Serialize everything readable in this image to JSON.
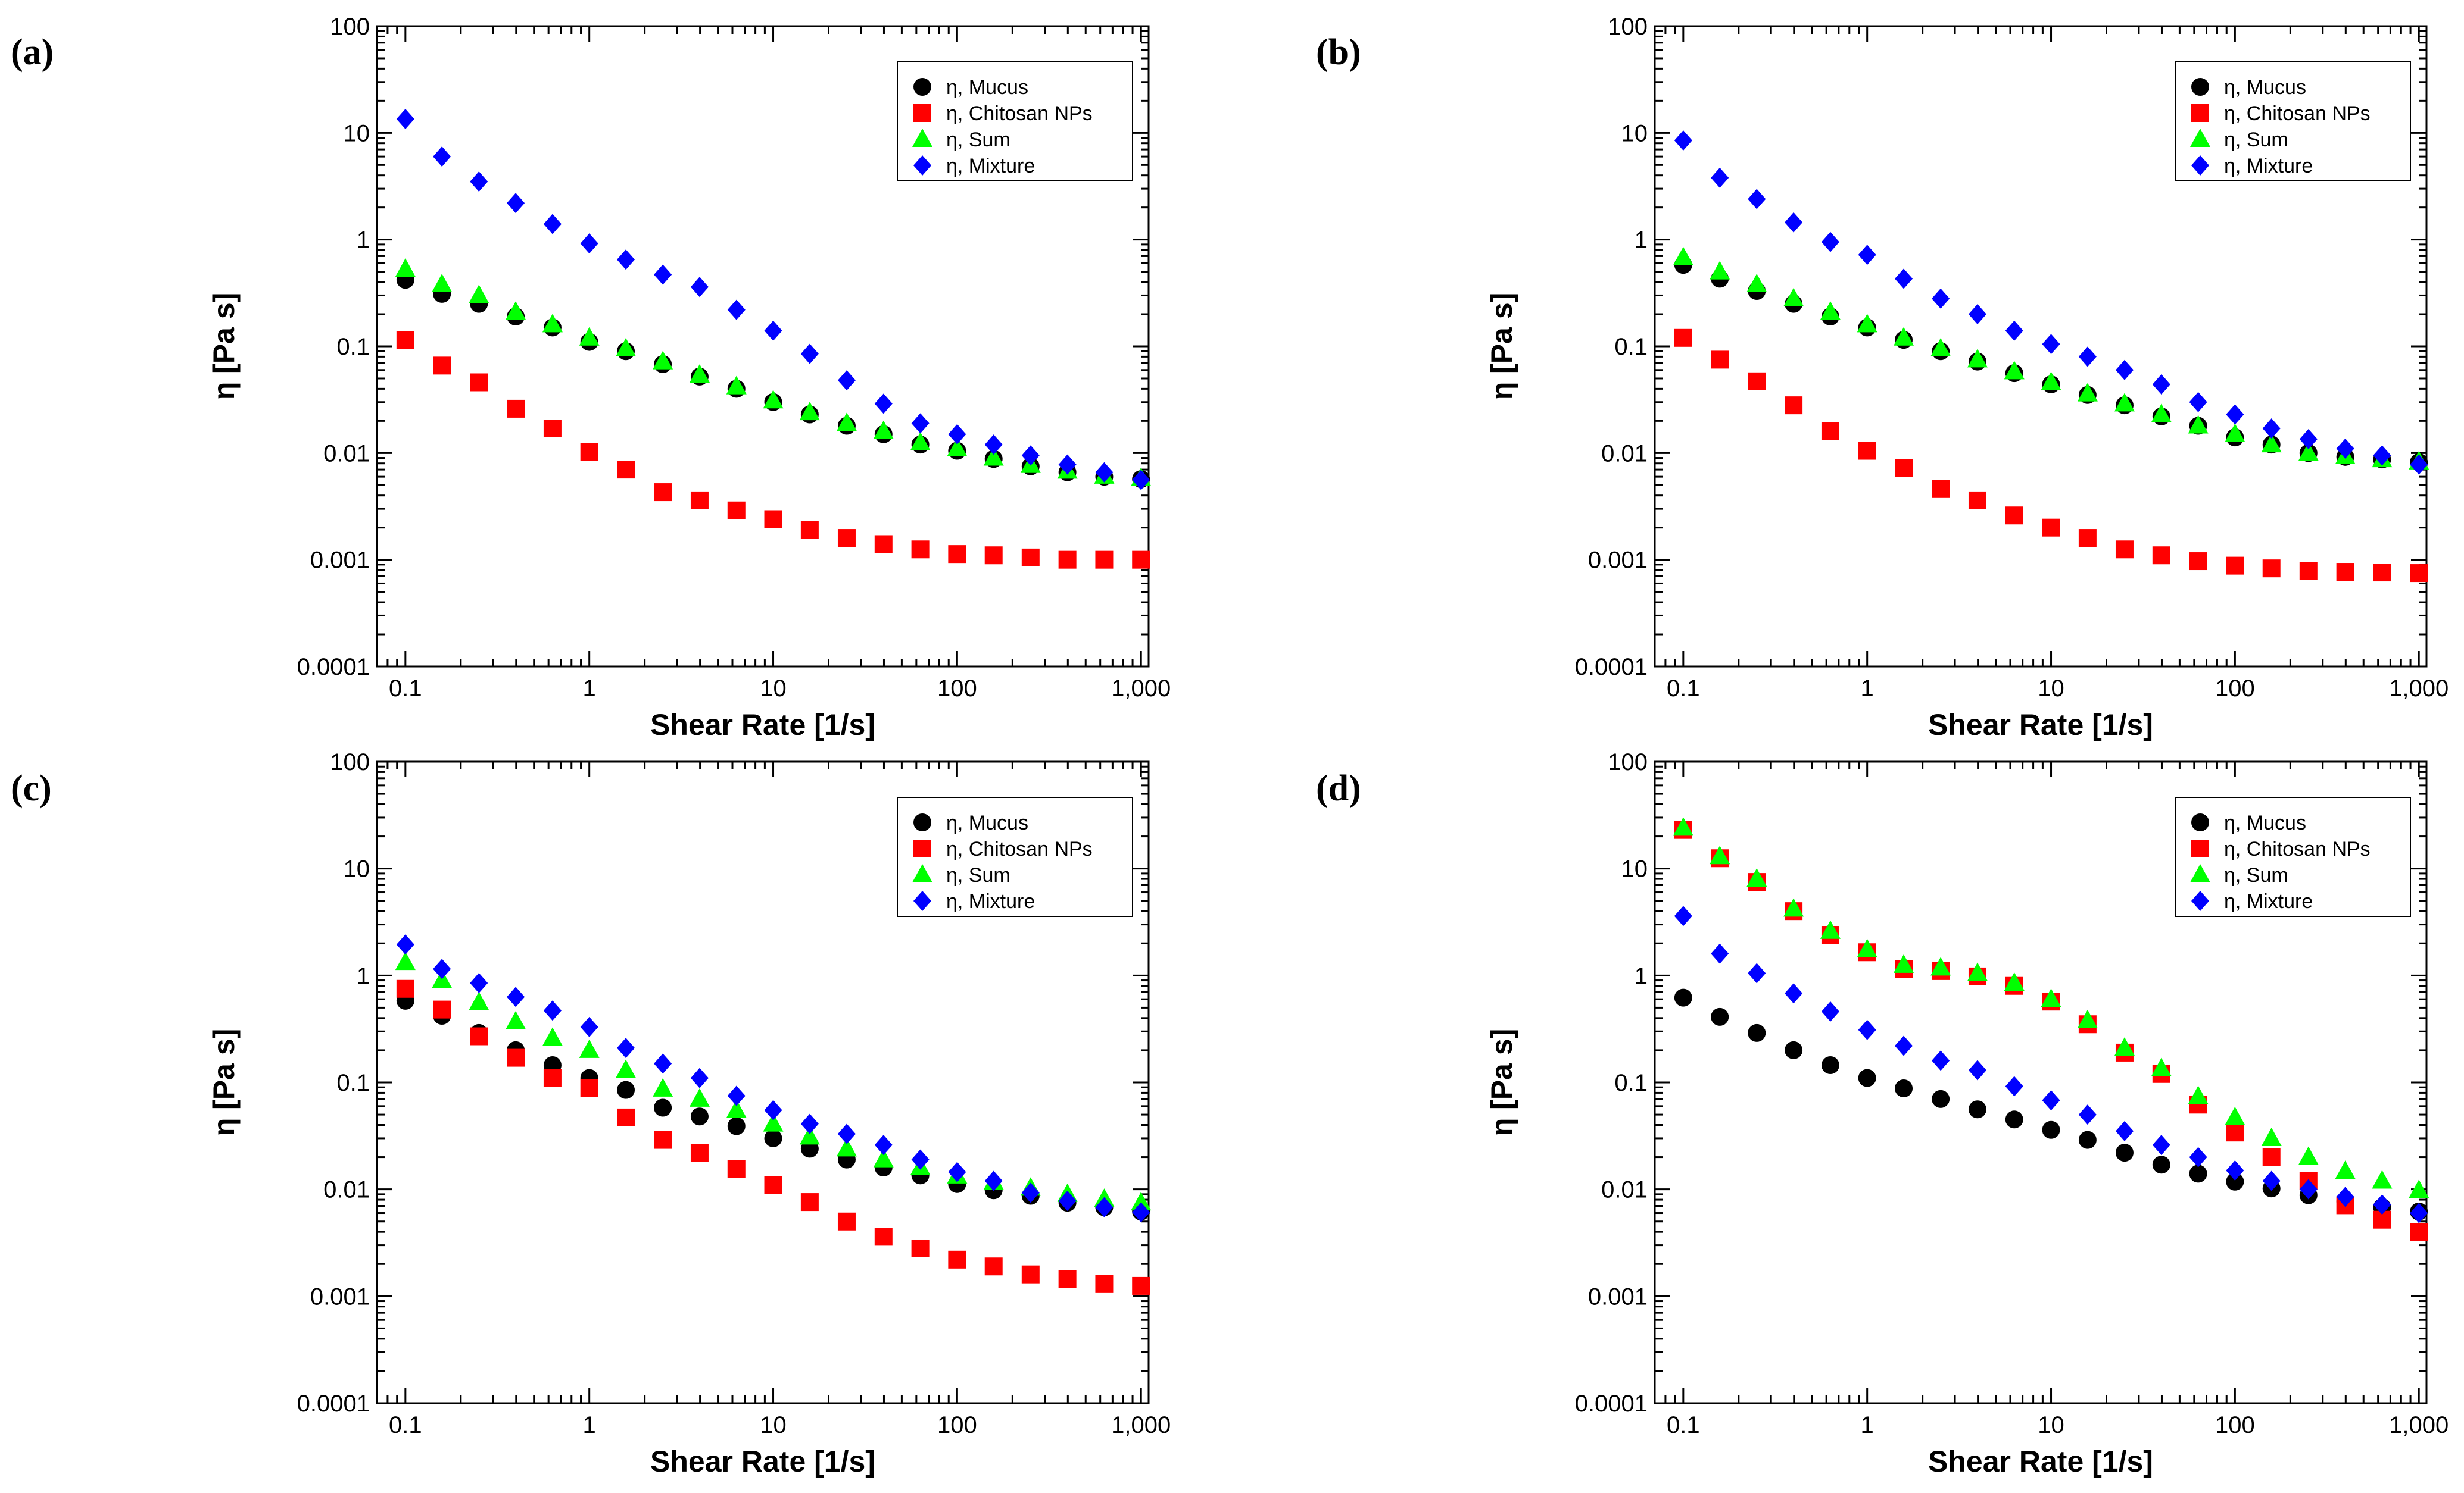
{
  "colors": {
    "mucus": "#000000",
    "chitosan": "#ff0000",
    "sum": "#00ff00",
    "mixture": "#0000ff"
  },
  "chart_data": [
    {
      "panel_label": "(a)",
      "type": "scatter",
      "xscale": "log",
      "yscale": "log",
      "xlabel": "Shear Rate [1/s]",
      "ylabel": "η [Pa s]",
      "xlim": [
        0.07,
        1100
      ],
      "ylim": [
        0.0001,
        100
      ],
      "xticks": [
        "0.1",
        "1",
        "10",
        "100",
        "1,000"
      ],
      "yticks": [
        "0.0001",
        "0.001",
        "0.01",
        "0.1",
        "1",
        "10",
        "100"
      ],
      "legend_position": "top-right",
      "x": [
        0.1,
        0.158,
        0.251,
        0.398,
        0.631,
        1,
        1.58,
        2.51,
        3.98,
        6.31,
        10,
        15.8,
        25.1,
        39.8,
        63.1,
        100,
        158,
        251,
        398,
        631,
        1000
      ],
      "series": [
        {
          "name": "η, Mucus",
          "marker": "circle",
          "values": [
            0.42,
            0.31,
            0.25,
            0.19,
            0.15,
            0.11,
            0.09,
            0.068,
            0.052,
            0.04,
            0.03,
            0.023,
            0.018,
            0.015,
            0.012,
            0.0105,
            0.0088,
            0.0075,
            0.0066,
            0.006,
            0.0057
          ]
        },
        {
          "name": "η, Chitosan NPs",
          "marker": "square",
          "values": [
            0.115,
            0.066,
            0.046,
            0.026,
            0.017,
            0.0103,
            0.007,
            0.0043,
            0.0036,
            0.0029,
            0.0024,
            0.0019,
            0.0016,
            0.0014,
            0.00125,
            0.00113,
            0.0011,
            0.00105,
            0.001,
            0.001,
            0.001
          ]
        },
        {
          "name": "η, Sum",
          "marker": "triangle",
          "values": [
            0.53,
            0.38,
            0.3,
            0.21,
            0.16,
            0.12,
            0.095,
            0.072,
            0.054,
            0.042,
            0.031,
            0.024,
            0.019,
            0.016,
            0.0125,
            0.011,
            0.009,
            0.0077,
            0.0068,
            0.0061,
            0.0058
          ]
        },
        {
          "name": "η, Mixture",
          "marker": "diamond",
          "values": [
            13.5,
            6,
            3.5,
            2.2,
            1.4,
            0.92,
            0.65,
            0.47,
            0.36,
            0.22,
            0.14,
            0.085,
            0.048,
            0.029,
            0.019,
            0.015,
            0.012,
            0.0095,
            0.0078,
            0.0066,
            0.0056
          ]
        }
      ]
    },
    {
      "panel_label": "(b)",
      "type": "scatter",
      "xscale": "log",
      "yscale": "log",
      "xlabel": "Shear Rate [1/s]",
      "ylabel": "η [Pa s]",
      "xlim": [
        0.07,
        1100
      ],
      "ylim": [
        0.0001,
        100
      ],
      "xticks": [
        "0.1",
        "1",
        "10",
        "100",
        "1,000"
      ],
      "yticks": [
        "0.0001",
        "0.001",
        "0.01",
        "0.1",
        "1",
        "10",
        "100"
      ],
      "legend_position": "top-right",
      "x": [
        0.1,
        0.158,
        0.251,
        0.398,
        0.631,
        1,
        1.58,
        2.51,
        3.98,
        6.31,
        10,
        15.8,
        25.1,
        39.8,
        63.1,
        100,
        158,
        251,
        398,
        631,
        1000
      ],
      "series": [
        {
          "name": "η, Mucus",
          "marker": "circle",
          "values": [
            0.58,
            0.43,
            0.33,
            0.25,
            0.19,
            0.15,
            0.115,
            0.09,
            0.072,
            0.056,
            0.044,
            0.035,
            0.028,
            0.022,
            0.018,
            0.014,
            0.012,
            0.01,
            0.0092,
            0.0087,
            0.0082
          ]
        },
        {
          "name": "η, Chitosan NPs",
          "marker": "square",
          "values": [
            0.12,
            0.075,
            0.047,
            0.028,
            0.016,
            0.0105,
            0.0072,
            0.0046,
            0.0036,
            0.0026,
            0.002,
            0.0016,
            0.00125,
            0.0011,
            0.00097,
            0.00088,
            0.00083,
            0.00079,
            0.00077,
            0.00076,
            0.00075
          ]
        },
        {
          "name": "η, Sum",
          "marker": "triangle",
          "values": [
            0.68,
            0.5,
            0.38,
            0.28,
            0.21,
            0.16,
            0.12,
            0.095,
            0.075,
            0.058,
            0.046,
            0.036,
            0.029,
            0.023,
            0.018,
            0.015,
            0.012,
            0.01,
            0.0093,
            0.0087,
            0.0083
          ]
        },
        {
          "name": "η, Mixture",
          "marker": "diamond",
          "values": [
            8.5,
            3.8,
            2.4,
            1.45,
            0.95,
            0.72,
            0.43,
            0.28,
            0.2,
            0.14,
            0.105,
            0.08,
            0.06,
            0.044,
            0.03,
            0.023,
            0.017,
            0.0135,
            0.011,
            0.0095,
            0.0078
          ]
        }
      ]
    },
    {
      "panel_label": "(c)",
      "type": "scatter",
      "xscale": "log",
      "yscale": "log",
      "xlabel": "Shear Rate [1/s]",
      "ylabel": "η [Pa s]",
      "xlim": [
        0.07,
        1100
      ],
      "ylim": [
        0.0001,
        100
      ],
      "xticks": [
        "0.1",
        "1",
        "10",
        "100",
        "1,000"
      ],
      "yticks": [
        "0.0001",
        "0.001",
        "0.01",
        "0.1",
        "1",
        "10",
        "100"
      ],
      "legend_position": "top-right",
      "x": [
        0.1,
        0.158,
        0.251,
        0.398,
        0.631,
        1,
        1.58,
        2.51,
        3.98,
        6.31,
        10,
        15.8,
        25.1,
        39.8,
        63.1,
        100,
        158,
        251,
        398,
        631,
        1000
      ],
      "series": [
        {
          "name": "η, Mucus",
          "marker": "circle",
          "values": [
            0.58,
            0.42,
            0.29,
            0.2,
            0.145,
            0.11,
            0.085,
            0.058,
            0.048,
            0.039,
            0.03,
            0.024,
            0.019,
            0.016,
            0.0135,
            0.0112,
            0.0098,
            0.0087,
            0.0075,
            0.0068,
            0.0062
          ]
        },
        {
          "name": "η, Chitosan NPs",
          "marker": "square",
          "values": [
            0.75,
            0.48,
            0.27,
            0.17,
            0.11,
            0.089,
            0.047,
            0.029,
            0.022,
            0.0155,
            0.011,
            0.0076,
            0.005,
            0.0036,
            0.0028,
            0.0022,
            0.0019,
            0.0016,
            0.00145,
            0.0013,
            0.00125
          ]
        },
        {
          "name": "η, Sum",
          "marker": "triangle",
          "values": [
            1.33,
            0.9,
            0.56,
            0.37,
            0.26,
            0.2,
            0.13,
            0.087,
            0.07,
            0.055,
            0.041,
            0.031,
            0.024,
            0.019,
            0.016,
            0.0134,
            0.0117,
            0.0103,
            0.009,
            0.0081,
            0.0075
          ]
        },
        {
          "name": "η, Mixture",
          "marker": "diamond",
          "values": [
            1.95,
            1.15,
            0.85,
            0.63,
            0.47,
            0.33,
            0.21,
            0.15,
            0.11,
            0.075,
            0.055,
            0.041,
            0.033,
            0.026,
            0.019,
            0.0145,
            0.012,
            0.0093,
            0.0078,
            0.0068,
            0.0061
          ]
        }
      ]
    },
    {
      "panel_label": "(d)",
      "type": "scatter",
      "xscale": "log",
      "yscale": "log",
      "xlabel": "Shear Rate [1/s]",
      "ylabel": "η [Pa s]",
      "xlim": [
        0.07,
        1100
      ],
      "ylim": [
        0.0001,
        100
      ],
      "xticks": [
        "0.1",
        "1",
        "10",
        "100",
        "1,000"
      ],
      "yticks": [
        "0.0001",
        "0.001",
        "0.01",
        "0.1",
        "1",
        "10",
        "100"
      ],
      "legend_position": "top-right",
      "x": [
        0.1,
        0.158,
        0.251,
        0.398,
        0.631,
        1,
        1.58,
        2.51,
        3.98,
        6.31,
        10,
        15.8,
        25.1,
        39.8,
        63.1,
        100,
        158,
        251,
        398,
        631,
        1000
      ],
      "series": [
        {
          "name": "η, Mucus",
          "marker": "circle",
          "values": [
            0.62,
            0.41,
            0.29,
            0.2,
            0.145,
            0.11,
            0.088,
            0.07,
            0.056,
            0.045,
            0.036,
            0.029,
            0.022,
            0.017,
            0.014,
            0.0118,
            0.0102,
            0.0088,
            0.0077,
            0.0068,
            0.0062
          ]
        },
        {
          "name": "η, Chitosan NPs",
          "marker": "square",
          "values": [
            23,
            12.5,
            7.5,
            4,
            2.4,
            1.65,
            1.15,
            1.1,
            0.98,
            0.8,
            0.57,
            0.35,
            0.19,
            0.12,
            0.062,
            0.034,
            0.02,
            0.012,
            0.0071,
            0.0052,
            0.004
          ]
        },
        {
          "name": "η, Sum",
          "marker": "triangle",
          "values": [
            24,
            13,
            8,
            4.2,
            2.6,
            1.75,
            1.25,
            1.18,
            1.05,
            0.85,
            0.6,
            0.38,
            0.21,
            0.135,
            0.074,
            0.047,
            0.03,
            0.02,
            0.0148,
            0.012,
            0.0098
          ]
        },
        {
          "name": "η, Mixture",
          "marker": "diamond",
          "values": [
            3.6,
            1.6,
            1.05,
            0.68,
            0.46,
            0.31,
            0.22,
            0.16,
            0.13,
            0.092,
            0.068,
            0.05,
            0.035,
            0.026,
            0.02,
            0.015,
            0.012,
            0.01,
            0.0085,
            0.0072,
            0.006
          ]
        }
      ]
    }
  ]
}
